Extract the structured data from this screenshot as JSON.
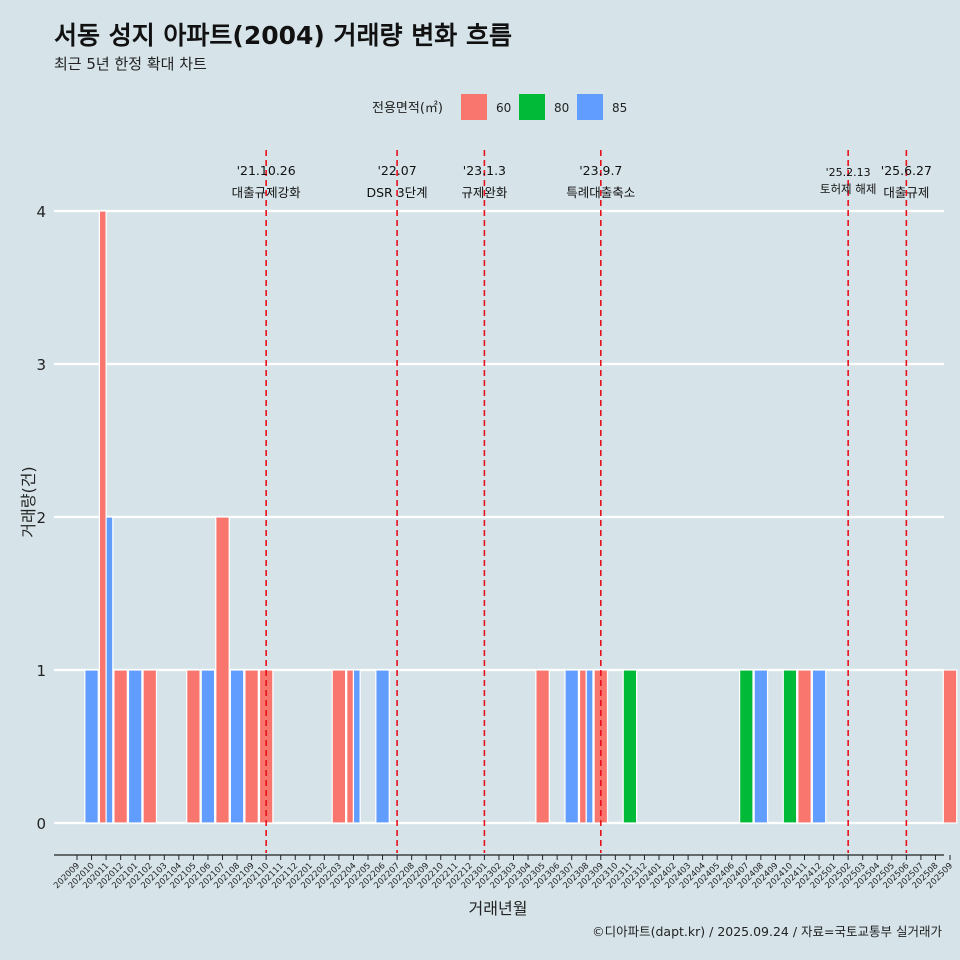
{
  "chart_data": {
    "type": "bar",
    "title": "서동 성지 아파트(2004) 거래량 변화 흐름",
    "subtitle": "최근 5년 한정 확대 차트",
    "xlabel": "거래년월",
    "ylabel": "거래량(건)",
    "ylim": [
      0,
      4
    ],
    "yticks": [
      0,
      1,
      2,
      3,
      4
    ],
    "legend_title": "전용면적(㎡)",
    "legend_position": "top",
    "caption": "©디아파트(dapt.kr) / 2025.09.24 / 자료=국토교통부 실거래가",
    "categories": [
      "202009",
      "202010",
      "202011",
      "202012",
      "202101",
      "202102",
      "202103",
      "202104",
      "202105",
      "202106",
      "202107",
      "202108",
      "202109",
      "202110",
      "202111",
      "202112",
      "202201",
      "202202",
      "202203",
      "202204",
      "202205",
      "202206",
      "202207",
      "202208",
      "202209",
      "202210",
      "202211",
      "202212",
      "202301",
      "202302",
      "202303",
      "202304",
      "202305",
      "202306",
      "202307",
      "202308",
      "202309",
      "202310",
      "202311",
      "202312",
      "202401",
      "202402",
      "202403",
      "202404",
      "202405",
      "202406",
      "202407",
      "202408",
      "202409",
      "202410",
      "202411",
      "202412",
      "202501",
      "202502",
      "202503",
      "202504",
      "202505",
      "202506",
      "202507",
      "202508",
      "202509"
    ],
    "series": [
      {
        "name": "60",
        "color": "#f8766d",
        "values": [
          0,
          0,
          4,
          1,
          0,
          1,
          0,
          0,
          1,
          0,
          2,
          0,
          1,
          1,
          0,
          0,
          0,
          0,
          1,
          1,
          0,
          0,
          0,
          0,
          0,
          0,
          0,
          0,
          0,
          0,
          0,
          0,
          1,
          0,
          0,
          1,
          1,
          0,
          0,
          0,
          0,
          0,
          0,
          0,
          0,
          0,
          0,
          0,
          0,
          0,
          1,
          0,
          0,
          0,
          0,
          0,
          0,
          0,
          0,
          0,
          1
        ]
      },
      {
        "name": "80",
        "color": "#00ba38",
        "values": [
          0,
          0,
          0,
          0,
          0,
          0,
          0,
          0,
          0,
          0,
          0,
          0,
          0,
          0,
          0,
          0,
          0,
          0,
          0,
          0,
          0,
          0,
          0,
          0,
          0,
          0,
          0,
          0,
          0,
          0,
          0,
          0,
          0,
          0,
          0,
          0,
          0,
          0,
          1,
          0,
          0,
          0,
          0,
          0,
          0,
          0,
          1,
          0,
          0,
          1,
          0,
          0,
          0,
          0,
          0,
          0,
          0,
          0,
          0,
          0,
          0
        ]
      },
      {
        "name": "85",
        "color": "#619cff",
        "values": [
          0,
          1,
          2,
          0,
          1,
          0,
          0,
          0,
          0,
          1,
          0,
          1,
          0,
          0,
          0,
          0,
          0,
          0,
          0,
          1,
          0,
          1,
          0,
          0,
          0,
          0,
          0,
          0,
          0,
          0,
          0,
          0,
          0,
          0,
          1,
          1,
          0,
          0,
          0,
          0,
          0,
          0,
          0,
          0,
          0,
          0,
          0,
          1,
          0,
          0,
          0,
          1,
          0,
          0,
          0,
          0,
          0,
          0,
          0,
          0,
          0
        ]
      }
    ],
    "events": [
      {
        "date": "'21.10.26",
        "label": "대출규제강화",
        "at": "202110"
      },
      {
        "date": "'22.07",
        "label": "DSR 3단계",
        "at": "202207"
      },
      {
        "date": "'23.1.3",
        "label": "규제완화",
        "at": "202301"
      },
      {
        "date": "'23.9.7",
        "label": "특례대출축소",
        "at": "202309"
      },
      {
        "date": "'25.2.13",
        "label": "토허제 해제",
        "at": "202502"
      },
      {
        "date": "'25.6.27",
        "label": "대출규제",
        "at": "202506"
      }
    ]
  }
}
